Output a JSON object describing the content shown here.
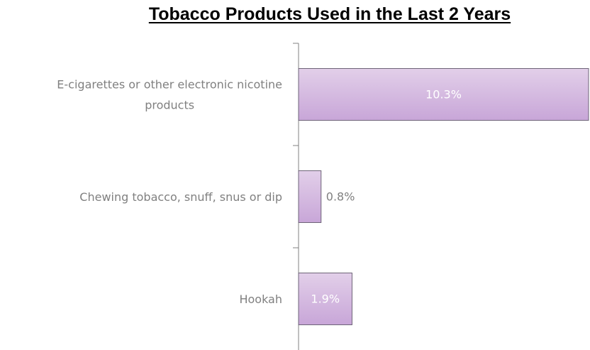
{
  "chart_data": {
    "type": "bar",
    "orientation": "horizontal",
    "title": "Tobacco Products Used in the Last 2 Years",
    "categories": [
      [
        "E-cigarettes or other electronic nicotine",
        "products"
      ],
      [
        "Chewing tobacco, snuff, snus or dip"
      ],
      [
        "Hookah"
      ]
    ],
    "values": [
      10.3,
      0.8,
      1.9
    ],
    "value_labels": [
      "10.3%",
      "0.8%",
      "1.9%"
    ],
    "xlim": [
      0,
      10.3
    ],
    "unit": "%",
    "grid": false,
    "legend": "none",
    "colors": {
      "bar_top": "#e2cfe9",
      "bar_bottom": "#c8a6d8",
      "bar_border": "#6e6478",
      "axis": "#808080",
      "category_text": "#808080",
      "label_inside": "#ffffff",
      "label_outside": "#808080"
    }
  }
}
